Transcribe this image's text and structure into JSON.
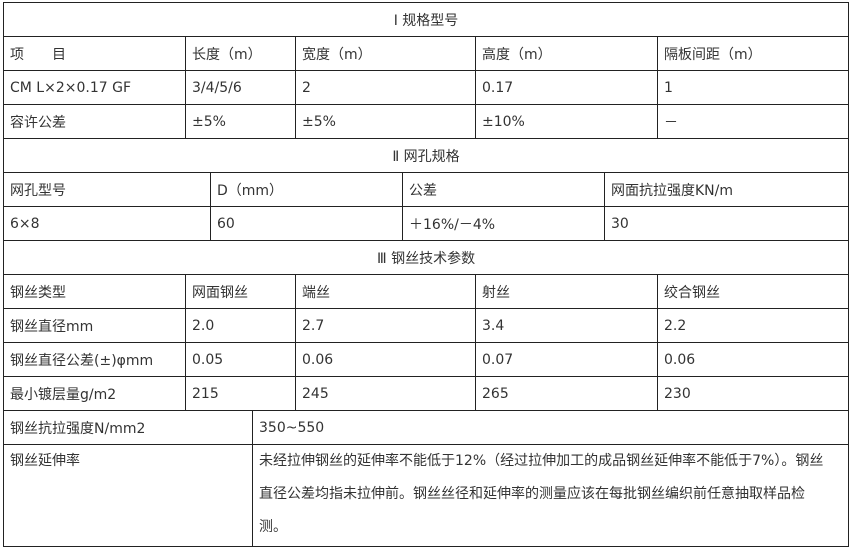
{
  "section1": {
    "title": "Ⅰ 规格型号",
    "header": [
      "项　　目",
      "长度（m）",
      "宽度（m）",
      "高度（m）",
      "隔板间距（m）"
    ],
    "rows": [
      [
        "CM L×2×0.17 GF",
        "3/4/5/6",
        "2",
        "0.17",
        "1"
      ],
      [
        "容许公差",
        "±5%",
        "±5%",
        "±10%",
        "－"
      ]
    ]
  },
  "section2": {
    "title": "Ⅱ 网孔规格",
    "header": [
      "网孔型号",
      "D（mm）",
      "公差",
      "网面抗拉强度KN/m"
    ],
    "rows": [
      [
        "6×8",
        "60",
        "＋16%/－4%",
        "30"
      ]
    ]
  },
  "section3": {
    "title": "Ⅲ 钢丝技术参数",
    "header": [
      "钢丝类型",
      "网面钢丝",
      "端丝",
      "射丝",
      "绞合钢丝"
    ],
    "rows": [
      [
        "钢丝直径mm",
        "2.0",
        "2.7",
        "3.4",
        "2.2"
      ],
      [
        "钢丝直径公差(±)φmm",
        "0.05",
        "0.06",
        "0.07",
        "0.06"
      ],
      [
        "最小镀层量g/m2",
        "215",
        "245",
        "265",
        "230"
      ]
    ],
    "strength_label": "钢丝抗拉强度N/mm2",
    "strength_value": "350~550",
    "elongation_label": "钢丝延伸率",
    "elongation_value": "未经拉伸钢丝的延伸率不能低于12%（经过拉伸加工的成品钢丝延伸率不能低于7%）。钢丝直径公差均指未拉伸前。钢丝丝径和延伸率的测量应该在每批钢丝编织前任意抽取样品检测。"
  }
}
